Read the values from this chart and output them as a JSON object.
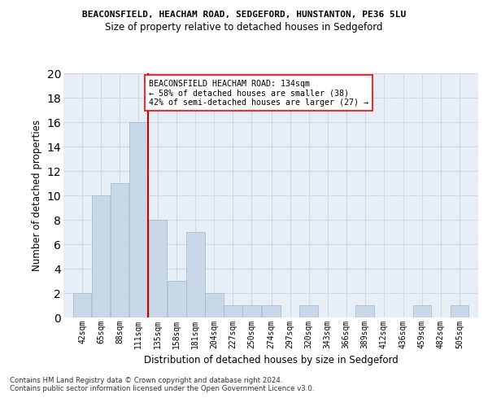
{
  "title1": "BEACONSFIELD, HEACHAM ROAD, SEDGEFORD, HUNSTANTON, PE36 5LU",
  "title2": "Size of property relative to detached houses in Sedgeford",
  "xlabel": "Distribution of detached houses by size in Sedgeford",
  "ylabel": "Number of detached properties",
  "categories": [
    "42sqm",
    "65sqm",
    "88sqm",
    "111sqm",
    "135sqm",
    "158sqm",
    "181sqm",
    "204sqm",
    "227sqm",
    "250sqm",
    "274sqm",
    "297sqm",
    "320sqm",
    "343sqm",
    "366sqm",
    "389sqm",
    "412sqm",
    "436sqm",
    "459sqm",
    "482sqm",
    "505sqm"
  ],
  "values": [
    2,
    10,
    11,
    16,
    8,
    3,
    7,
    2,
    1,
    1,
    1,
    0,
    1,
    0,
    0,
    1,
    0,
    0,
    1,
    0,
    1
  ],
  "bar_color": "#c8d8e8",
  "bar_edge_color": "#a0b8cc",
  "grid_color": "#d0d8e8",
  "bg_color": "#e8eef6",
  "annotation_line_color": "#cc0000",
  "annotation_box_text": "BEACONSFIELD HEACHAM ROAD: 134sqm\n← 58% of detached houses are smaller (38)\n42% of semi-detached houses are larger (27) →",
  "footer1": "Contains HM Land Registry data © Crown copyright and database right 2024.",
  "footer2": "Contains public sector information licensed under the Open Government Licence v3.0.",
  "ylim": [
    0,
    20
  ],
  "bin_width": 23,
  "cat_centers": [
    42,
    65,
    88,
    111,
    135,
    158,
    181,
    204,
    227,
    250,
    274,
    297,
    320,
    343,
    366,
    389,
    412,
    436,
    459,
    482,
    505
  ]
}
